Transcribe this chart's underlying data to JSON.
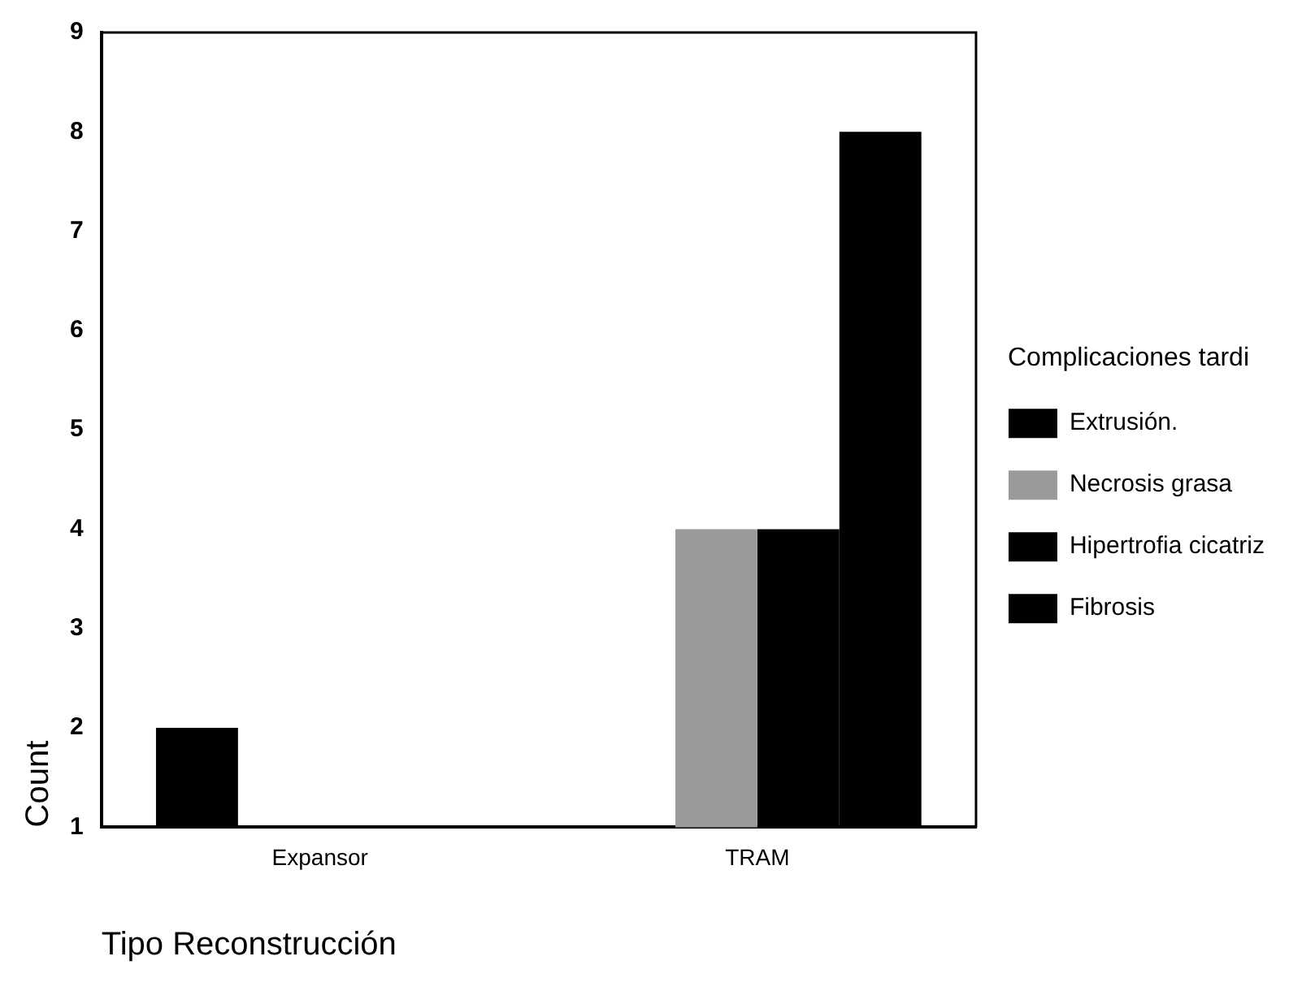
{
  "chart_data": {
    "type": "bar",
    "xlabel": "Tipo Reconstrucción",
    "ylabel": "Count",
    "legend_title": "Complicaciones tardi",
    "categories": [
      "Expansor",
      "TRAM"
    ],
    "series": [
      {
        "name": "Extrusión.",
        "color": "#000000",
        "values": [
          2,
          null
        ]
      },
      {
        "name": "Necrosis grasa",
        "color": "#9a9a9a",
        "values": [
          null,
          4
        ]
      },
      {
        "name": "Hipertrofia cicatriz",
        "color": "#000000",
        "values": [
          null,
          4
        ]
      },
      {
        "name": "Fibrosis",
        "color": "#000000",
        "values": [
          null,
          8
        ]
      }
    ],
    "ylim": [
      1,
      9
    ],
    "yticks": [
      1,
      2,
      3,
      4,
      5,
      6,
      7,
      8,
      9
    ],
    "grid": false,
    "legend": "right"
  }
}
